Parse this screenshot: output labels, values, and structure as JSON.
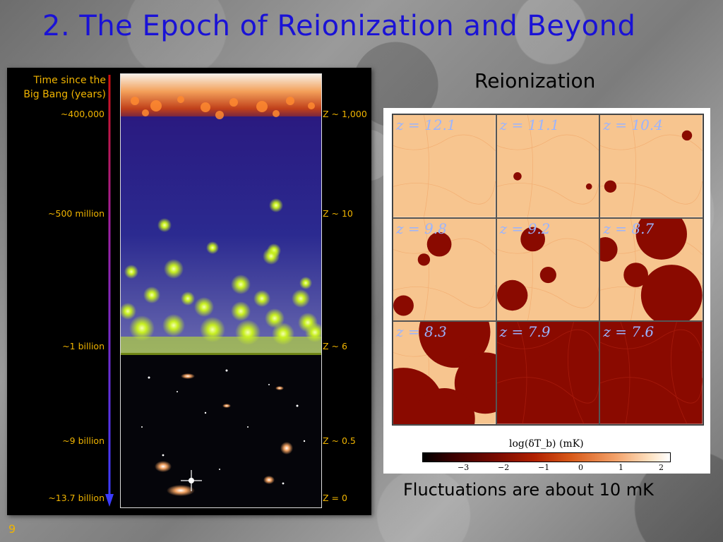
{
  "slide": {
    "title": "2. The Epoch of Reionization and Beyond",
    "page_number": "9"
  },
  "timeline": {
    "header_line1": "Time since the",
    "header_line2": "Big Bang (years)",
    "left_labels": [
      "~400,000",
      "~500 million",
      "~1 billion",
      "~9 billion",
      "~13.7 billion"
    ],
    "right_labels": [
      "Z ~ 1,000",
      "Z ~ 10",
      "Z ~ 6",
      "Z ~ 0.5",
      "Z = 0"
    ]
  },
  "reionization": {
    "heading": "Reionization",
    "panels": [
      {
        "label": "z = 12.1",
        "ionized_fraction": 0.0
      },
      {
        "label": "z = 11.1",
        "ionized_fraction": 0.02
      },
      {
        "label": "z = 10.4",
        "ionized_fraction": 0.05
      },
      {
        "label": "z = 9.8",
        "ionized_fraction": 0.1
      },
      {
        "label": "z = 9.2",
        "ionized_fraction": 0.18
      },
      {
        "label": "z = 8.7",
        "ionized_fraction": 0.35
      },
      {
        "label": "z = 8.3",
        "ionized_fraction": 0.6
      },
      {
        "label": "z = 7.9",
        "ionized_fraction": 1.0
      },
      {
        "label": "z = 7.6",
        "ionized_fraction": 1.0
      }
    ],
    "colorbar_label": "log(δT_b) (mK)",
    "colorbar_ticks": [
      "−3",
      "−2",
      "−1",
      "0",
      "1",
      "2"
    ],
    "caption": "Fluctuations are about 10 mK"
  },
  "colors": {
    "title": "#1a12d6",
    "timeline_text": "#f0b400",
    "arrow": "#3b3bff",
    "neutral_gas": "#f7c58f",
    "ionized_gas": "#8a0a00"
  }
}
